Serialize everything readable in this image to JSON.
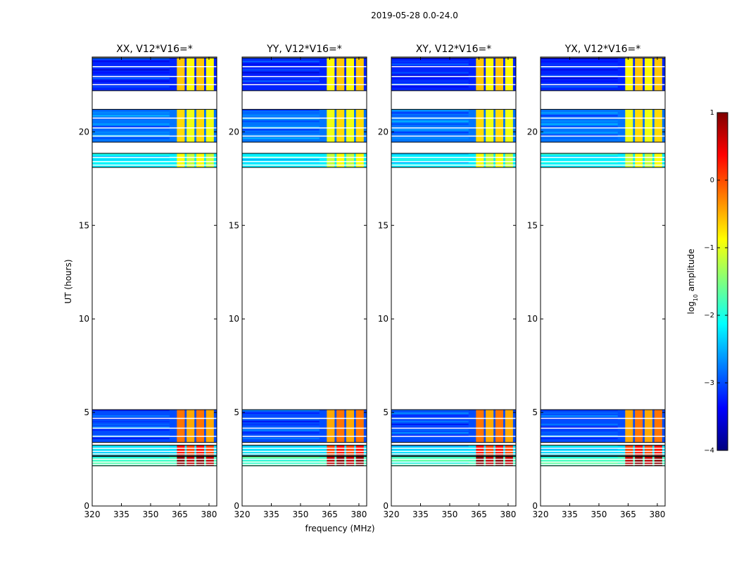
{
  "suptitle": "2019-05-28 0.0-24.0",
  "chart_data": {
    "type": "heatmap",
    "title": "2019-05-28 0.0-24.0",
    "xlabel": "frequency (MHz)",
    "ylabel": "UT (hours)",
    "xlim": [
      320,
      384
    ],
    "ylim": [
      0,
      24
    ],
    "xticks": [
      "320",
      "335",
      "350",
      "365",
      "380"
    ],
    "yticks": [
      "0",
      "5",
      "10",
      "15",
      "20"
    ],
    "colorbar": {
      "label": "log10 amplitude",
      "label_main": "log",
      "label_sub": "10",
      "label_rest": " amplitude",
      "range": [
        -4,
        1
      ],
      "ticks": [
        "−4",
        "−3",
        "−2",
        "−1",
        "0",
        "1"
      ],
      "colors": [
        "#00007f",
        "#0000ff",
        "#007fff",
        "#00ffff",
        "#7fff7f",
        "#ffff00",
        "#ff7f00",
        "#ff0000",
        "#7f0000"
      ]
    },
    "time_blocks_hours": [
      {
        "start": 2.15,
        "end": 2.65,
        "bg_level": -1.8,
        "band_level": 0.85
      },
      {
        "start": 2.7,
        "end": 3.25,
        "bg_level": -2.3,
        "band_level": 0.2
      },
      {
        "start": 3.4,
        "end": 5.15,
        "bg_level": -3.0,
        "band_level": -0.3
      },
      {
        "start": 18.1,
        "end": 18.85,
        "bg_level": -2.2,
        "band_level": -1.0
      },
      {
        "start": 19.45,
        "end": 21.2,
        "bg_level": -2.8,
        "band_level": -0.8
      },
      {
        "start": 22.2,
        "end": 23.95,
        "bg_level": -3.2,
        "band_level": -0.7
      }
    ],
    "band_channels_mhz": [
      {
        "start": 363.5,
        "end": 367.5
      },
      {
        "start": 368.5,
        "end": 372.5
      },
      {
        "start": 373.5,
        "end": 377.5
      },
      {
        "start": 378.5,
        "end": 382.5
      }
    ],
    "panels": [
      {
        "title": "XX, V12*V16=*"
      },
      {
        "title": "YY, V12*V16=*"
      },
      {
        "title": "XY, V12*V16=*"
      },
      {
        "title": "YX, V12*V16=*"
      }
    ]
  }
}
